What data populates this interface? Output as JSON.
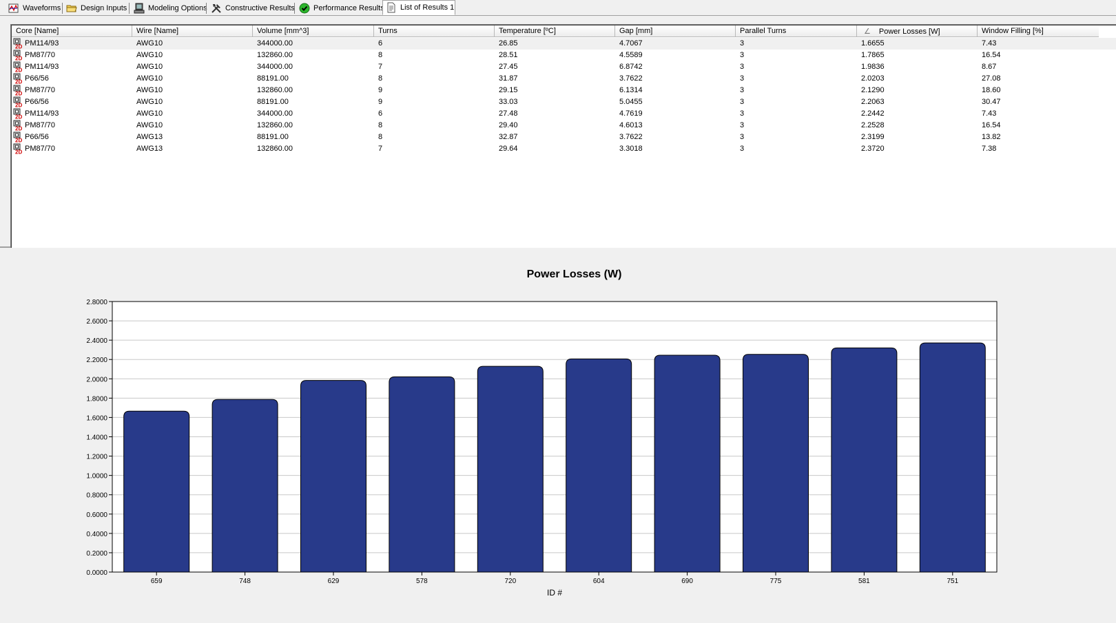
{
  "tabs": [
    {
      "label": "Waveforms",
      "icon": "waveform-icon",
      "active": false
    },
    {
      "label": "Design Inputs",
      "icon": "folder-icon",
      "active": false
    },
    {
      "label": "Modeling Options",
      "icon": "computer-icon",
      "active": false
    },
    {
      "label": "Constructive Results",
      "icon": "tools-icon",
      "active": false
    },
    {
      "label": "Performance Results",
      "icon": "check-circle-icon",
      "active": false
    },
    {
      "label": "List of Results 1",
      "icon": "document-icon",
      "active": true
    }
  ],
  "grid": {
    "columns": [
      "Core [Name]",
      "Wire [Name]",
      "Volume [mm^3]",
      "Turns",
      "Temperature [ºC]",
      "Gap [mm]",
      "Parallel Turns",
      "Power Losses [W]",
      "Window Filling [%]"
    ],
    "sort_indicator": "∠",
    "rows": [
      [
        "PM114/93",
        "AWG10",
        "344000.00",
        "6",
        "26.85",
        "4.7067",
        "3",
        "1.6655",
        "7.43"
      ],
      [
        "PM87/70",
        "AWG10",
        "132860.00",
        "8",
        "28.51",
        "4.5589",
        "3",
        "1.7865",
        "16.54"
      ],
      [
        "PM114/93",
        "AWG10",
        "344000.00",
        "7",
        "27.45",
        "6.8742",
        "3",
        "1.9836",
        "8.67"
      ],
      [
        "P66/56",
        "AWG10",
        "88191.00",
        "8",
        "31.87",
        "3.7622",
        "3",
        "2.0203",
        "27.08"
      ],
      [
        "PM87/70",
        "AWG10",
        "132860.00",
        "9",
        "29.15",
        "6.1314",
        "3",
        "2.1290",
        "18.60"
      ],
      [
        "P66/56",
        "AWG10",
        "88191.00",
        "9",
        "33.03",
        "5.0455",
        "3",
        "2.2063",
        "30.47"
      ],
      [
        "PM114/93",
        "AWG10",
        "344000.00",
        "6",
        "27.48",
        "4.7619",
        "3",
        "2.2442",
        "7.43"
      ],
      [
        "PM87/70",
        "AWG10",
        "132860.00",
        "8",
        "29.40",
        "4.6013",
        "3",
        "2.2528",
        "16.54"
      ],
      [
        "P66/56",
        "AWG13",
        "88191.00",
        "8",
        "32.87",
        "3.7622",
        "3",
        "2.3199",
        "13.82"
      ],
      [
        "PM87/70",
        "AWG13",
        "132860.00",
        "7",
        "29.64",
        "3.3018",
        "3",
        "2.3720",
        "7.38"
      ]
    ],
    "row_icon": "core-2d-icon"
  },
  "chart_data": {
    "type": "bar",
    "title": "Power Losses (W)",
    "xlabel": "ID #",
    "ylabel": "",
    "categories": [
      "659",
      "748",
      "629",
      "578",
      "720",
      "604",
      "690",
      "775",
      "581",
      "751"
    ],
    "values": [
      1.6655,
      1.7865,
      1.9836,
      2.0203,
      2.129,
      2.2063,
      2.2442,
      2.2528,
      2.3199,
      2.372
    ],
    "ylim": [
      0,
      2.8
    ],
    "yticks": [
      "0.0000",
      "0.2000",
      "0.4000",
      "0.6000",
      "0.8000",
      "1.0000",
      "1.2000",
      "1.4000",
      "1.6000",
      "1.8000",
      "2.0000",
      "2.2000",
      "2.4000",
      "2.6000",
      "2.8000"
    ],
    "grid": true,
    "bar_color": "#283a8a"
  }
}
